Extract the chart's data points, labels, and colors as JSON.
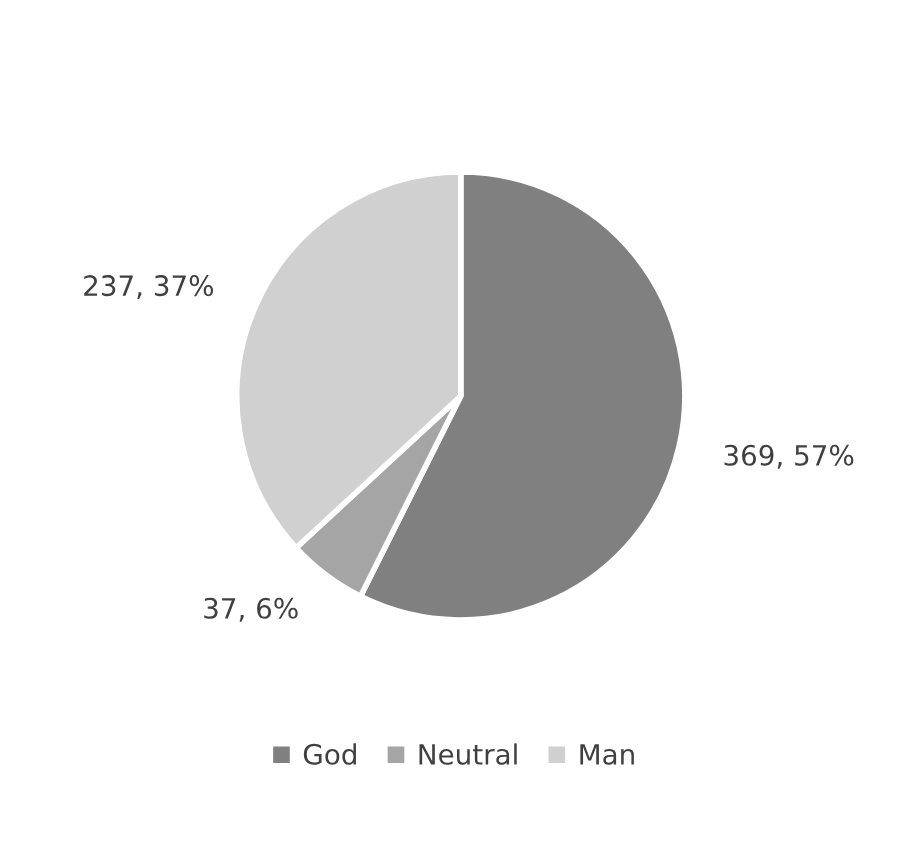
{
  "chart_data": {
    "type": "pie",
    "categories": [
      "God",
      "Neutral",
      "Man"
    ],
    "values": [
      369,
      37,
      237
    ],
    "colors": [
      "#808080",
      "#a5a5a5",
      "#d0d0d0"
    ],
    "value_labels": [
      "369, 57%",
      "37, 6%",
      "237, 37%"
    ],
    "legend": "bottom"
  }
}
